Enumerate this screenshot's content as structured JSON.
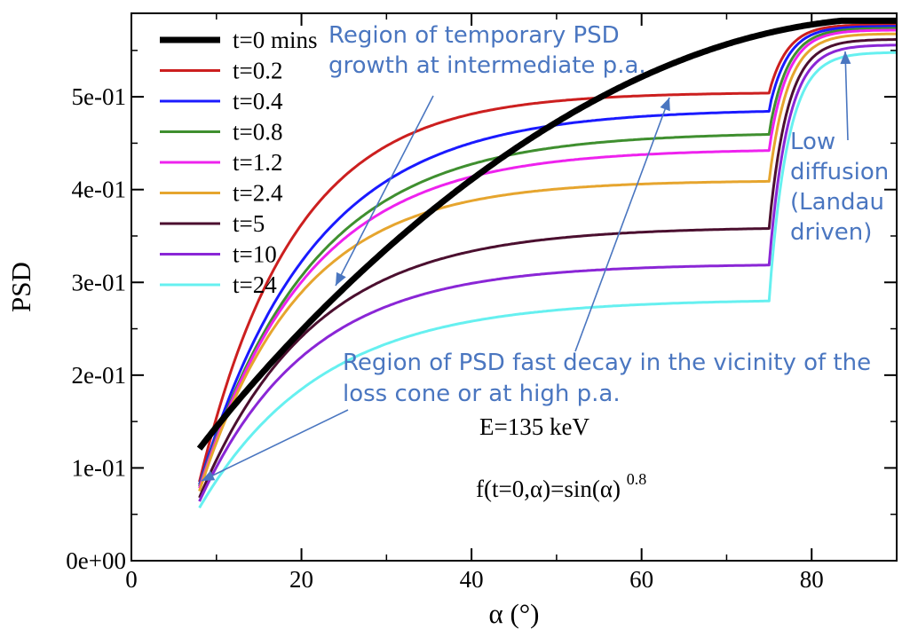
{
  "chart_data": {
    "type": "line",
    "xlabel": "α (°)",
    "ylabel": "PSD",
    "xlim": [
      0,
      90
    ],
    "ylim": [
      0,
      0.59
    ],
    "x_ticks": [
      0,
      20,
      40,
      60,
      80
    ],
    "x_tick_labels": [
      "0",
      "20",
      "40",
      "60",
      "80"
    ],
    "y_ticks": [
      0,
      0.1,
      0.2,
      0.3,
      0.4,
      0.5
    ],
    "y_tick_labels": [
      "0e+00",
      "1e-01",
      "2e-01",
      "3e-01",
      "4e-01",
      "5e-01"
    ],
    "grid": false,
    "legend_position": "top-left",
    "alpha_start": 8,
    "alpha_cone": 75,
    "series": [
      {
        "name": "t=0 mins",
        "color": "#000000",
        "shape": "initial",
        "plateau": null,
        "y_start": 0.105,
        "high_end": 0.582
      },
      {
        "name": "t=0.2",
        "color": "#cc1f1f",
        "shape": "evolved",
        "k": 0.09,
        "plateau": 0.505,
        "y_start": 0.085,
        "high_end": 0.578
      },
      {
        "name": "t=0.4",
        "color": "#1a1aff",
        "shape": "evolved",
        "k": 0.075,
        "plateau": 0.487,
        "y_start": 0.082,
        "high_end": 0.576
      },
      {
        "name": "t=0.8",
        "color": "#3f8f2f",
        "shape": "evolved",
        "k": 0.075,
        "plateau": 0.462,
        "y_start": 0.08,
        "high_end": 0.574
      },
      {
        "name": "t=1.2",
        "color": "#ee22ee",
        "shape": "evolved",
        "k": 0.078,
        "plateau": 0.444,
        "y_start": 0.078,
        "high_end": 0.572
      },
      {
        "name": "t=2.4",
        "color": "#e6a52e",
        "shape": "evolved",
        "k": 0.085,
        "plateau": 0.41,
        "y_start": 0.075,
        "high_end": 0.568
      },
      {
        "name": "t=5",
        "color": "#4b0f2f",
        "shape": "evolved",
        "k": 0.075,
        "plateau": 0.36,
        "y_start": 0.068,
        "high_end": 0.562
      },
      {
        "name": "t=10",
        "color": "#8a26d6",
        "shape": "evolved",
        "k": 0.078,
        "plateau": 0.32,
        "y_start": 0.064,
        "high_end": 0.556
      },
      {
        "name": "t=24",
        "color": "#66f0f0",
        "shape": "evolved",
        "k": 0.07,
        "plateau": 0.282,
        "y_start": 0.057,
        "high_end": 0.548
      }
    ],
    "annotations": [
      {
        "lines": [
          "Region of temporary PSD",
          "growth at intermediate p.a."
        ],
        "color": "#4a76c0"
      },
      {
        "lines": [
          "Low",
          "diffusion",
          "(Landau",
          "driven)"
        ],
        "color": "#4a76c0"
      },
      {
        "lines": [
          "Region of PSD fast decay in the vicinity of the",
          "loss cone or at high p.a."
        ],
        "color": "#4a76c0"
      }
    ],
    "energy_label": "E=135 keV",
    "formula_label": "f(t=0,α)=sin(α)",
    "formula_exponent": "0.8"
  }
}
